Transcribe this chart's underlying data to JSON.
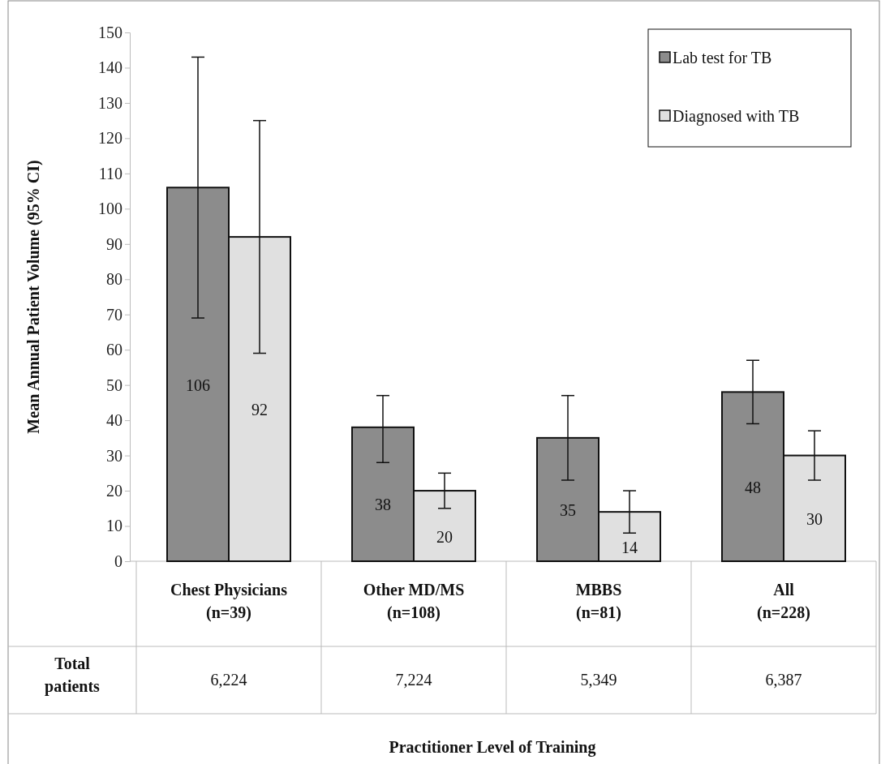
{
  "chart_data": {
    "type": "bar",
    "ylabel": "Mean Annual Patient Volume (95% CI)",
    "categories": [
      "Chest Physicians\n(n=39)",
      "Other MD/MS\n(n=108)",
      "MBBS\n(n=81)",
      "All\n(n=228)"
    ],
    "series": [
      {
        "name": "Lab test for TB",
        "color": "#8c8c8c",
        "values": [
          106,
          38,
          35,
          48
        ],
        "errors": [
          [
            69,
            143
          ],
          [
            28,
            47
          ],
          [
            23,
            47
          ],
          [
            39,
            57
          ]
        ]
      },
      {
        "name": "Diagnosed with TB",
        "color": "#e0e0e0",
        "values": [
          92,
          20,
          14,
          30
        ],
        "errors": [
          [
            59,
            125
          ],
          [
            15,
            25
          ],
          [
            8,
            20
          ],
          [
            23,
            37
          ]
        ]
      }
    ],
    "ylim": [
      0,
      150
    ],
    "yticks": [
      0,
      10,
      20,
      30,
      40,
      50,
      60,
      70,
      80,
      90,
      100,
      110,
      120,
      130,
      140,
      150
    ],
    "grid": false,
    "legend": "top right",
    "data_labels": true,
    "annotations": [
      "Total patients",
      "6,224",
      "7,224",
      "5,349",
      "6,387",
      "Practitioner Level of Training"
    ]
  }
}
